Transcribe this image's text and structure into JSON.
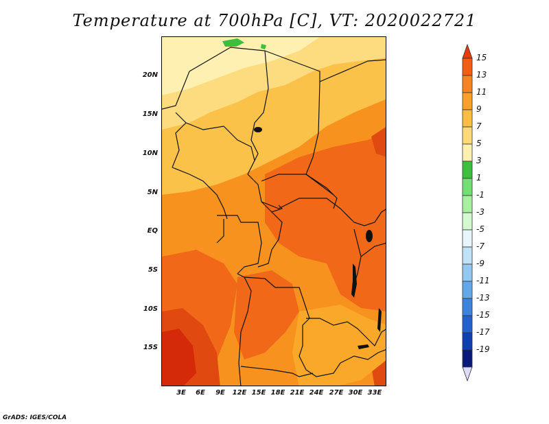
{
  "title": "Temperature at 700hPa [C], VT: 2020022721",
  "credit": "GrADS: IGES/COLA",
  "lat_labels": [
    "20N",
    "15N",
    "10N",
    "5N",
    "EQ",
    "5S",
    "10S",
    "15S"
  ],
  "lon_labels": [
    "3E",
    "6E",
    "9E",
    "12E",
    "15E",
    "18E",
    "21E",
    "24E",
    "27E",
    "30E",
    "33E"
  ],
  "colorbar": {
    "labels": [
      "15",
      "13",
      "11",
      "9",
      "7",
      "5",
      "3",
      "1",
      "-1",
      "-3",
      "-5",
      "-7",
      "-9",
      "-11",
      "-13",
      "-15",
      "-17",
      "-19"
    ],
    "colors": [
      "#e53a0c",
      "#f25e13",
      "#f7841e",
      "#f9a027",
      "#fbbd40",
      "#fdd97a",
      "#fdf0b0",
      "#3dbf3d",
      "#74e074",
      "#a8f0a0",
      "#d4f8d0",
      "#e8f6fb",
      "#bfe2f7",
      "#93c8f0",
      "#63a8e8",
      "#3e84dc",
      "#2361cf",
      "#0f3fb0",
      "#0a1a7a",
      "#dcdcf8"
    ]
  },
  "colors": {
    "hot": "#d42a0a",
    "warm": "#f06818",
    "mid": "#f7921e",
    "mild": "#f9a82a",
    "cool": "#fbc24a",
    "pale": "#fddc80",
    "green": "#3dbf3d"
  }
}
